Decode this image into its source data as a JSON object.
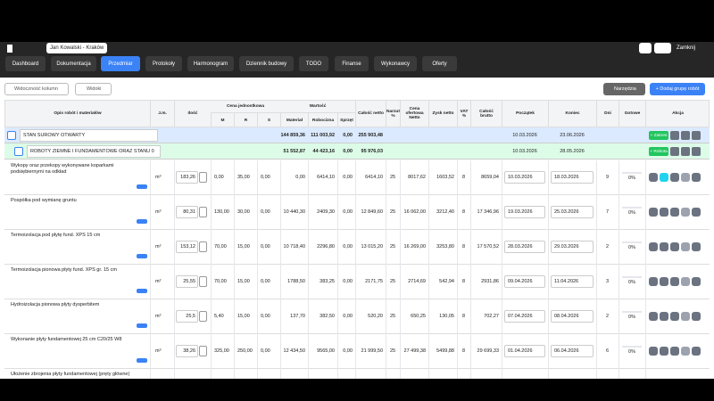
{
  "header": {
    "project": "Jan Kowalski - Kraków",
    "close": "Zamknij"
  },
  "tabs": [
    "Dashboard",
    "Dokumentacja",
    "Przedmiar",
    "Protokoły",
    "Harmonogram",
    "Dziennik budowy",
    "TODO",
    "Finanse",
    "Wykonawcy",
    "Oferty"
  ],
  "toolbar": {
    "columns": "Widoczność kolumn",
    "views": "Widoki",
    "tools": "Narzędzia",
    "add_group": "+ Dodaj grupę robót"
  },
  "table": {
    "header_groups": {
      "unit_price": "Cena jednostkowa",
      "value": "Wartość"
    },
    "columns": [
      "Opis robót i materiałów",
      "J.m.",
      "Ilość",
      "M",
      "R",
      "S",
      "Materiał",
      "Robocizna",
      "Sprzęt",
      "Całość netto",
      "Narzut %",
      "Cena ofertowa Netto",
      "Zysk netto",
      "VAT %",
      "Całość brutto",
      "Początek",
      "Koniec",
      "Dni",
      "Gotowe",
      "Akcja"
    ],
    "groups": [
      {
        "name": "STAN SUROWY OTWARTY",
        "material": "144 859,36",
        "labor": "111 003,92",
        "equipment": "0,00",
        "net": "255 903,48",
        "start": "10.03.2026",
        "end": "23.06.2026",
        "button": "+ Zakres"
      },
      {
        "name": "ROBOTY ZIEMNE I FUNDAMENTOWE ORAZ STANU 0",
        "material": "51 552,87",
        "labor": "44 423,16",
        "equipment": "0,00",
        "net": "95 976,03",
        "start": "10.03.2026",
        "end": "28.05.2026",
        "button": "+ Robota"
      }
    ],
    "items": [
      [
        "Wykopy oraz przekopy wykonywane koparkami podsiębiernymi na odkład",
        "m³",
        "183,26",
        "0,00",
        "35,00",
        "0,00",
        "0,00",
        "6414,10",
        "0,00",
        "6414,10",
        "25",
        "8017,62",
        "1603,52",
        "8",
        "8659,04",
        "10.03.2026",
        "18.03.2026",
        "9",
        "0%"
      ],
      [
        "Pospółka pod wymianę gruntu",
        "m³",
        "80,31",
        "130,00",
        "30,00",
        "0,00",
        "10 440,30",
        "2409,30",
        "0,00",
        "12 849,60",
        "25",
        "16 062,00",
        "3212,40",
        "8",
        "17 346,96",
        "19.03.2026",
        "25.03.2026",
        "7",
        "0%"
      ],
      [
        "Termoizolacja pod płytę fund. XPS 15 cm",
        "m²",
        "153,12",
        "70,00",
        "15,00",
        "0,00",
        "10 718,40",
        "2296,80",
        "0,00",
        "13 015,20",
        "25",
        "16 269,00",
        "3253,80",
        "8",
        "17 570,52",
        "28.03.2026",
        "29.03.2026",
        "2",
        "0%"
      ],
      [
        "Termoizolacja pionowa płyty fund. XPS gr. 15 cm",
        "m²",
        "25,55",
        "70,00",
        "15,00",
        "0,00",
        "1788,50",
        "383,25",
        "0,00",
        "2171,75",
        "25",
        "2714,69",
        "542,94",
        "8",
        "2931,86",
        "09.04.2026",
        "11.04.2026",
        "3",
        "0%"
      ],
      [
        "Hydroizolacja pionowa płyty dysperbitem",
        "m²",
        "25,5",
        "5,40",
        "15,00",
        "0,00",
        "137,70",
        "382,50",
        "0,00",
        "520,20",
        "25",
        "650,25",
        "130,05",
        "8",
        "702,27",
        "07.04.2026",
        "08.04.2026",
        "2",
        "0%"
      ],
      [
        "Wykonanie płyty fundamentowej 25 cm C20/25 W8",
        "m³",
        "38,26",
        "325,00",
        "250,00",
        "0,00",
        "12 434,50",
        "9565,00",
        "0,00",
        "21 999,50",
        "25",
        "27 499,38",
        "5499,88",
        "8",
        "29 699,33",
        "01.04.2026",
        "06.04.2026",
        "6",
        "0%"
      ],
      [
        "Ułożenie zbrojenia płyty fundamentowej (pręty główne)"
      ]
    ]
  }
}
